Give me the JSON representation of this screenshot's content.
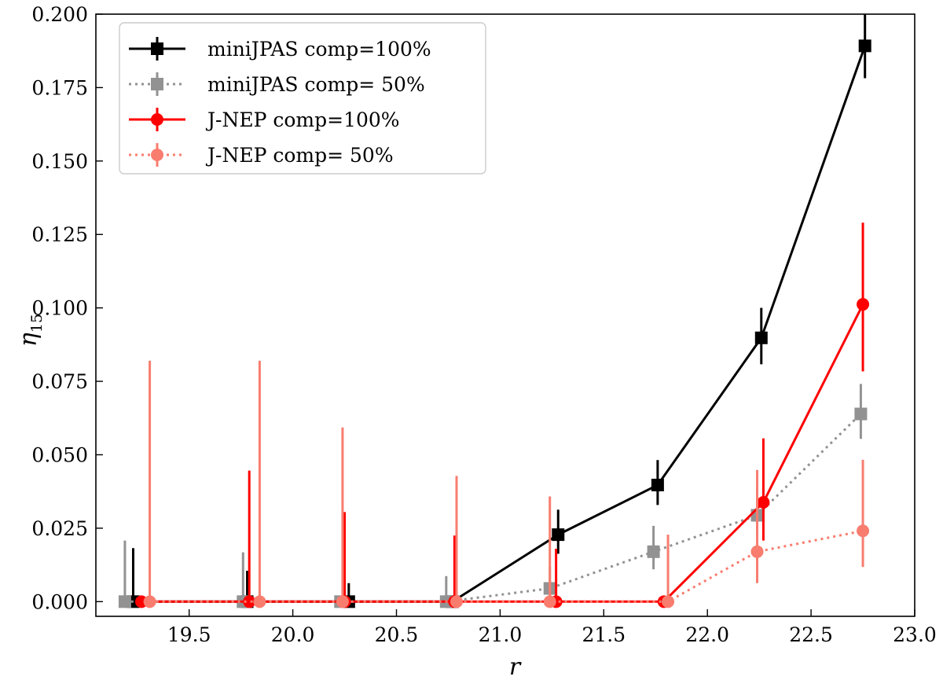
{
  "chart_data": {
    "type": "line",
    "xlabel": "r",
    "ylabel": "η",
    "ylabel_sub": "15",
    "xlim": [
      19.05,
      23.0
    ],
    "ylim": [
      -0.005,
      0.2
    ],
    "xticks": [
      19.5,
      20.0,
      20.5,
      21.0,
      21.5,
      22.0,
      22.5,
      23.0
    ],
    "xtick_labels": [
      "19.5",
      "20.0",
      "20.5",
      "21.0",
      "21.5",
      "22.0",
      "22.5",
      "23.0"
    ],
    "yticks": [
      0.0,
      0.025,
      0.05,
      0.075,
      0.1,
      0.125,
      0.15,
      0.175,
      0.2
    ],
    "ytick_labels": [
      "0.000",
      "0.025",
      "0.050",
      "0.075",
      "0.100",
      "0.125",
      "0.150",
      "0.175",
      "0.200"
    ],
    "grid": false,
    "legend_position": "top-left",
    "series": [
      {
        "name": "miniJPAS comp=100%",
        "color": "#000000",
        "linestyle": "solid",
        "marker": "square",
        "x": [
          19.23,
          19.78,
          20.27,
          20.77,
          21.28,
          21.76,
          22.26,
          22.76
        ],
        "y": [
          0.0,
          0.0,
          0.0,
          0.0,
          0.0228,
          0.0397,
          0.0898,
          0.1892
        ],
        "err_low": [
          0.0,
          0.0,
          0.0,
          0.0,
          0.0065,
          0.0068,
          0.009,
          0.011
        ],
        "err_high": [
          0.0182,
          0.0105,
          0.0063,
          0.0,
          0.0085,
          0.0085,
          0.0102,
          0.012
        ]
      },
      {
        "name": "miniJPAS comp= 50%",
        "color": "#929292",
        "linestyle": "dotted",
        "marker": "square",
        "x": [
          19.19,
          19.76,
          20.23,
          20.74,
          21.24,
          21.74,
          22.24,
          22.74
        ],
        "y": [
          0.0,
          0.0,
          0.0,
          0.0,
          0.0045,
          0.017,
          0.0294,
          0.0639
        ],
        "err_low": [
          0.0,
          0.0,
          0.0,
          0.0,
          0.003,
          0.006,
          0.008,
          0.0085
        ],
        "err_high": [
          0.0208,
          0.0168,
          0.0,
          0.0087,
          0.0075,
          0.0088,
          0.0095,
          0.0102
        ]
      },
      {
        "name": "J-NEP comp=100%",
        "color": "#ff0000",
        "linestyle": "solid",
        "marker": "circle",
        "x": [
          19.27,
          19.79,
          20.25,
          20.78,
          21.27,
          21.79,
          22.27,
          22.75
        ],
        "y": [
          0.0,
          0.0,
          0.0,
          0.0,
          0.0,
          0.0,
          0.0338,
          0.1012
        ],
        "err_low": [
          0.0,
          0.0,
          0.0,
          0.0,
          0.0,
          0.0,
          0.013,
          0.0228
        ],
        "err_high": [
          0.0,
          0.0446,
          0.0305,
          0.0225,
          0.018,
          0.0,
          0.0218,
          0.0278
        ]
      },
      {
        "name": "J-NEP comp= 50%",
        "color": "#f87d6f",
        "linestyle": "dotted",
        "marker": "circle",
        "x": [
          19.31,
          19.84,
          20.24,
          20.79,
          21.24,
          21.81,
          22.24,
          22.75
        ],
        "y": [
          0.0,
          0.0,
          0.0,
          0.0,
          0.0,
          0.0,
          0.017,
          0.0241
        ],
        "err_low": [
          0.0,
          0.0,
          0.0,
          0.0,
          0.0,
          0.0,
          0.0107,
          0.0123
        ],
        "err_high": [
          0.082,
          0.082,
          0.0593,
          0.0428,
          0.0358,
          0.0228,
          0.0278,
          0.0242
        ]
      }
    ]
  }
}
